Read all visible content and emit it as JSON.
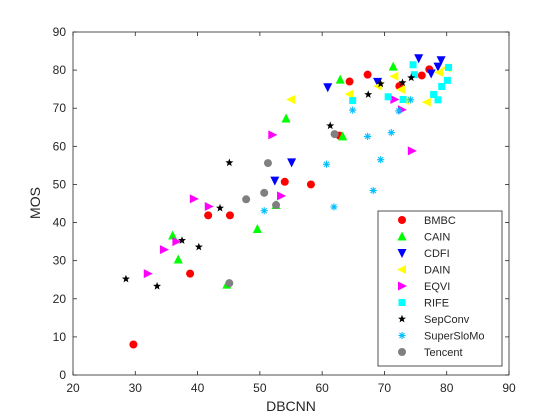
{
  "chart_data": {
    "type": "scatter",
    "xlabel": "DBCNN",
    "ylabel": "MOS",
    "xlim": [
      20,
      90
    ],
    "ylim": [
      0,
      90
    ],
    "xticks": [
      20,
      30,
      40,
      50,
      60,
      70,
      80,
      90
    ],
    "yticks": [
      0,
      10,
      20,
      30,
      40,
      50,
      60,
      70,
      80,
      90
    ],
    "grid": false,
    "legend_position": "bottom-right",
    "series": [
      {
        "name": "BMBC",
        "marker": "circle",
        "color": "#ff0000",
        "points": [
          [
            29.7,
            8.0
          ],
          [
            38.8,
            26.6
          ],
          [
            41.7,
            41.9
          ],
          [
            45.2,
            41.9
          ],
          [
            54.0,
            50.7
          ],
          [
            58.2,
            50.0
          ],
          [
            62.8,
            62.8
          ],
          [
            64.4,
            77.0
          ],
          [
            67.3,
            78.8
          ],
          [
            72.4,
            75.8
          ],
          [
            76.0,
            78.6
          ],
          [
            77.2,
            80.2
          ]
        ]
      },
      {
        "name": "CAIN",
        "marker": "triangle-up",
        "color": "#00ff00",
        "points": [
          [
            36.0,
            36.6
          ],
          [
            36.9,
            30.3
          ],
          [
            44.7,
            23.7
          ],
          [
            49.6,
            38.3
          ],
          [
            52.6,
            44.6
          ],
          [
            54.2,
            67.3
          ],
          [
            62.9,
            77.5
          ],
          [
            63.3,
            62.6
          ],
          [
            71.4,
            80.9
          ]
        ]
      },
      {
        "name": "CDFI",
        "marker": "triangle-down",
        "color": "#0000ff",
        "points": [
          [
            52.4,
            51.0
          ],
          [
            55.1,
            55.8
          ],
          [
            60.9,
            75.5
          ],
          [
            68.9,
            76.9
          ],
          [
            75.5,
            83.1
          ],
          [
            77.5,
            79.1
          ],
          [
            78.6,
            80.9
          ],
          [
            79.1,
            82.6
          ]
        ]
      },
      {
        "name": "DAIN",
        "marker": "triangle-left",
        "color": "#ffff00",
        "points": [
          [
            55.0,
            72.3
          ],
          [
            64.4,
            73.7
          ],
          [
            69.0,
            75.8
          ],
          [
            71.6,
            78.4
          ],
          [
            72.7,
            74.9
          ],
          [
            73.4,
            72.0
          ],
          [
            76.8,
            71.6
          ],
          [
            78.8,
            79.4
          ],
          [
            80.0,
            80.6
          ]
        ]
      },
      {
        "name": "EQVI",
        "marker": "triangle-right",
        "color": "#ff00ff",
        "points": [
          [
            32.0,
            26.6
          ],
          [
            34.6,
            32.9
          ],
          [
            36.6,
            35.0
          ],
          [
            39.4,
            46.2
          ],
          [
            41.8,
            44.2
          ],
          [
            52.0,
            63.0
          ],
          [
            53.4,
            47.0
          ],
          [
            71.6,
            72.3
          ],
          [
            72.8,
            69.6
          ],
          [
            74.4,
            58.8
          ]
        ]
      },
      {
        "name": "RIFE",
        "marker": "square",
        "color": "#00ffff",
        "points": [
          [
            64.9,
            72.0
          ],
          [
            70.6,
            73.0
          ],
          [
            73.0,
            72.3
          ],
          [
            74.6,
            81.4
          ],
          [
            74.8,
            78.8
          ],
          [
            77.9,
            73.6
          ],
          [
            78.6,
            72.2
          ],
          [
            79.2,
            75.7
          ],
          [
            80.1,
            77.3
          ],
          [
            80.3,
            80.7
          ]
        ]
      },
      {
        "name": "SepConv",
        "marker": "pentagram",
        "color": "#000000",
        "points": [
          [
            28.5,
            25.2
          ],
          [
            33.5,
            23.3
          ],
          [
            37.5,
            35.3
          ],
          [
            40.2,
            33.6
          ],
          [
            43.6,
            43.8
          ],
          [
            45.1,
            55.7
          ],
          [
            61.3,
            65.4
          ],
          [
            67.4,
            73.6
          ],
          [
            69.4,
            76.4
          ],
          [
            72.9,
            76.7
          ],
          [
            74.3,
            78.0
          ]
        ]
      },
      {
        "name": "SuperSloMo",
        "marker": "asterisk",
        "color": "#00bfff",
        "points": [
          [
            50.7,
            43.1
          ],
          [
            60.7,
            55.3
          ],
          [
            61.9,
            44.1
          ],
          [
            64.9,
            69.5
          ],
          [
            67.3,
            62.6
          ],
          [
            68.2,
            48.4
          ],
          [
            69.4,
            56.5
          ],
          [
            71.1,
            63.6
          ],
          [
            72.3,
            69.3
          ],
          [
            74.2,
            72.2
          ]
        ]
      },
      {
        "name": "Tencent",
        "marker": "circle",
        "color": "#808080",
        "points": [
          [
            45.1,
            24.1
          ],
          [
            47.8,
            46.1
          ],
          [
            50.7,
            47.8
          ],
          [
            51.3,
            55.6
          ],
          [
            52.6,
            44.6
          ],
          [
            62.0,
            63.2
          ]
        ]
      }
    ]
  }
}
